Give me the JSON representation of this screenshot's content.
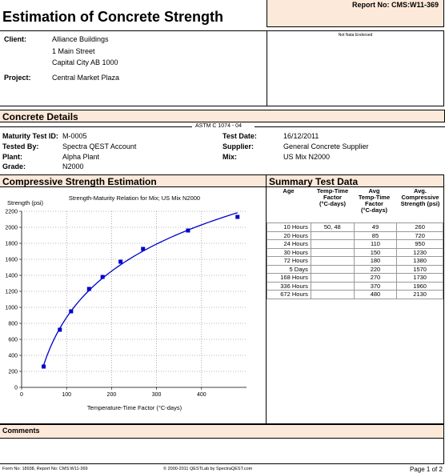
{
  "report": {
    "title": "Estimation of Concrete Strength",
    "report_no": "Report No: CMS:W11-369",
    "endorsement": "Not Nata Endorsed"
  },
  "client": {
    "client_label": "Client:",
    "lines": [
      "Alliance Buildings",
      "1 Main Street",
      "Capital City  AB  1000"
    ],
    "project_label": "Project:",
    "project": "Central Market Plaza"
  },
  "concrete": {
    "section_title": "Concrete Details",
    "standard": "ASTM C 1074 - 04",
    "maturity_label": "Maturity Test ID:",
    "maturity": "M-0005",
    "tested_by_label": "Tested By:",
    "tested_by": "Spectra QEST Account",
    "plant_label": "Plant:",
    "plant": "Alpha Plant",
    "grade_label": "Grade:",
    "grade": "N2000",
    "test_date_label": "Test Date:",
    "test_date": "16/12/2011",
    "supplier_label": "Supplier:",
    "supplier": "General Concrete Supplier",
    "mix_label": "Mix:",
    "mix": "US Mix N2000"
  },
  "estimation": {
    "section_title": "Compressive Strength Estimation"
  },
  "chart_data": {
    "type": "line",
    "title": "Strength-Maturity Relation for Mix; US Mix N2000",
    "ylabel": "Strength (psi)",
    "xlabel": "Temperature-Time Factor (°C-days)",
    "xlim": [
      0,
      500
    ],
    "ylim": [
      0,
      2200
    ],
    "xticks": [
      0,
      100,
      200,
      300,
      400
    ],
    "yticks": [
      0,
      200,
      400,
      600,
      800,
      1000,
      1200,
      1400,
      1600,
      1800,
      2000,
      2200
    ],
    "grid": true,
    "series": [
      {
        "x": [
          49,
          85,
          110,
          150,
          180,
          220,
          270,
          370,
          480
        ],
        "y": [
          260,
          720,
          950,
          1230,
          1380,
          1570,
          1730,
          1960,
          2130
        ],
        "color": "#0000cc"
      }
    ]
  },
  "summary": {
    "section_title": "Summary Test Data",
    "headers": {
      "age": "Age",
      "ttf": [
        "Temp-Time",
        "Factor",
        "(°C-days)"
      ],
      "avg_ttf": [
        "Avg",
        "Temp-Time",
        "Factor",
        "(°C-days)"
      ],
      "avg_str": [
        "Avg.",
        "Compressive",
        "Strength (psi)"
      ]
    },
    "rows": [
      [
        "10 Hours",
        "50, 48",
        "49",
        "260"
      ],
      [
        "20 Hours",
        "",
        "85",
        "720"
      ],
      [
        "24 Hours",
        "",
        "110",
        "950"
      ],
      [
        "30 Hours",
        "",
        "150",
        "1230"
      ],
      [
        "72 Hours",
        "",
        "180",
        "1380"
      ],
      [
        "5 Days",
        "",
        "220",
        "1570"
      ],
      [
        "168 Hours",
        "",
        "270",
        "1730"
      ],
      [
        "336 Hours",
        "",
        "370",
        "1960"
      ],
      [
        "672 Hours",
        "",
        "480",
        "2130"
      ]
    ]
  },
  "comments": {
    "section_title": "Comments"
  },
  "footer": {
    "form": "Form No: 18938, Report No: CMS:W11-369",
    "copyright": "© 2000-2011 QESTLab by SpectraQEST.com",
    "page": "Page 1 of 2"
  }
}
